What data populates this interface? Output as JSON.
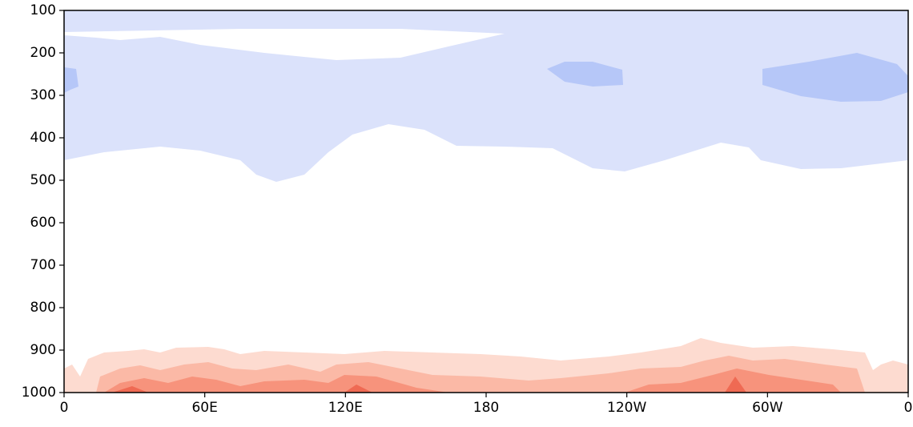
{
  "chart_data": {
    "type": "contour",
    "xlim": [
      0,
      360
    ],
    "xticks": [
      0,
      {
        "value": 60,
        "label": "60E"
      },
      {
        "value": 120,
        "label": "120E"
      },
      180,
      {
        "value": 240,
        "label": "120W"
      },
      {
        "value": 300,
        "label": "60W"
      },
      {
        "value": 360,
        "label": "0"
      }
    ],
    "ylim": [
      1000,
      100
    ],
    "yticks": [
      100,
      200,
      300,
      400,
      500,
      600,
      700,
      800,
      900,
      1000
    ]
  }
}
